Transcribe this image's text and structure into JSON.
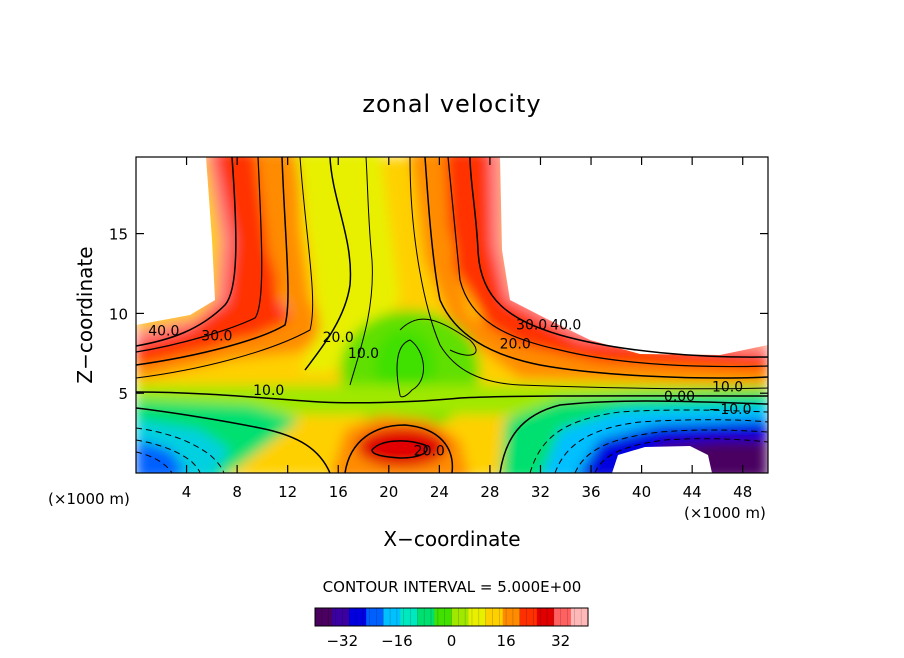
{
  "chart_data": {
    "type": "contour",
    "title": "zonal velocity",
    "xlabel": "X−coordinate",
    "ylabel": "Z−coordinate",
    "x_unit_left": "(×1000 m)",
    "x_unit_right": "(×1000 m)",
    "xlim": [
      0,
      50
    ],
    "ylim": [
      0,
      19.8
    ],
    "x_ticks": [
      4,
      8,
      12,
      16,
      20,
      24,
      28,
      32,
      36,
      40,
      44,
      48
    ],
    "y_ticks": [
      5,
      10,
      15
    ],
    "x_tick_labels": [
      "4",
      "8",
      "12",
      "16",
      "20",
      "24",
      "28",
      "32",
      "36",
      "40",
      "44",
      "48"
    ],
    "y_tick_labels": [
      "5",
      "10",
      "15"
    ],
    "contour_interval_label": "CONTOUR INTERVAL = 5.000E+00",
    "contour_labels": [
      {
        "text": "40.0",
        "x": 2.2,
        "y": 8.6
      },
      {
        "text": "30.0",
        "x": 6.4,
        "y": 8.3
      },
      {
        "text": "20.0",
        "x": 16.0,
        "y": 8.2
      },
      {
        "text": "10.0",
        "x": 18.0,
        "y": 7.2
      },
      {
        "text": "10.0",
        "x": 10.5,
        "y": 4.9
      },
      {
        "text": "30.0",
        "x": 31.3,
        "y": 9.0
      },
      {
        "text": "40.0",
        "x": 34.0,
        "y": 9.0
      },
      {
        "text": "20.0",
        "x": 30.0,
        "y": 7.8
      },
      {
        "text": "10.0",
        "x": 46.8,
        "y": 5.1
      },
      {
        "text": "0.00",
        "x": 43.0,
        "y": 4.5
      },
      {
        "text": "−10.0",
        "x": 47.0,
        "y": 3.7
      },
      {
        "text": "20.0",
        "x": 23.2,
        "y": 1.1
      }
    ],
    "colorbar": {
      "range": [
        -40,
        40
      ],
      "tick_values": [
        -32,
        -16,
        0,
        16,
        32
      ],
      "tick_labels": [
        "−32",
        "−16",
        "0",
        "16",
        "32"
      ],
      "colors": [
        "#4a0060",
        "#3a00a0",
        "#0000e0",
        "#0060ff",
        "#00c0ff",
        "#00e8c0",
        "#00e070",
        "#40e000",
        "#a0e800",
        "#e8f000",
        "#ffd000",
        "#ff8c00",
        "#ff3000",
        "#e00000",
        "#ff6060",
        "#ffb8b8"
      ]
    }
  }
}
